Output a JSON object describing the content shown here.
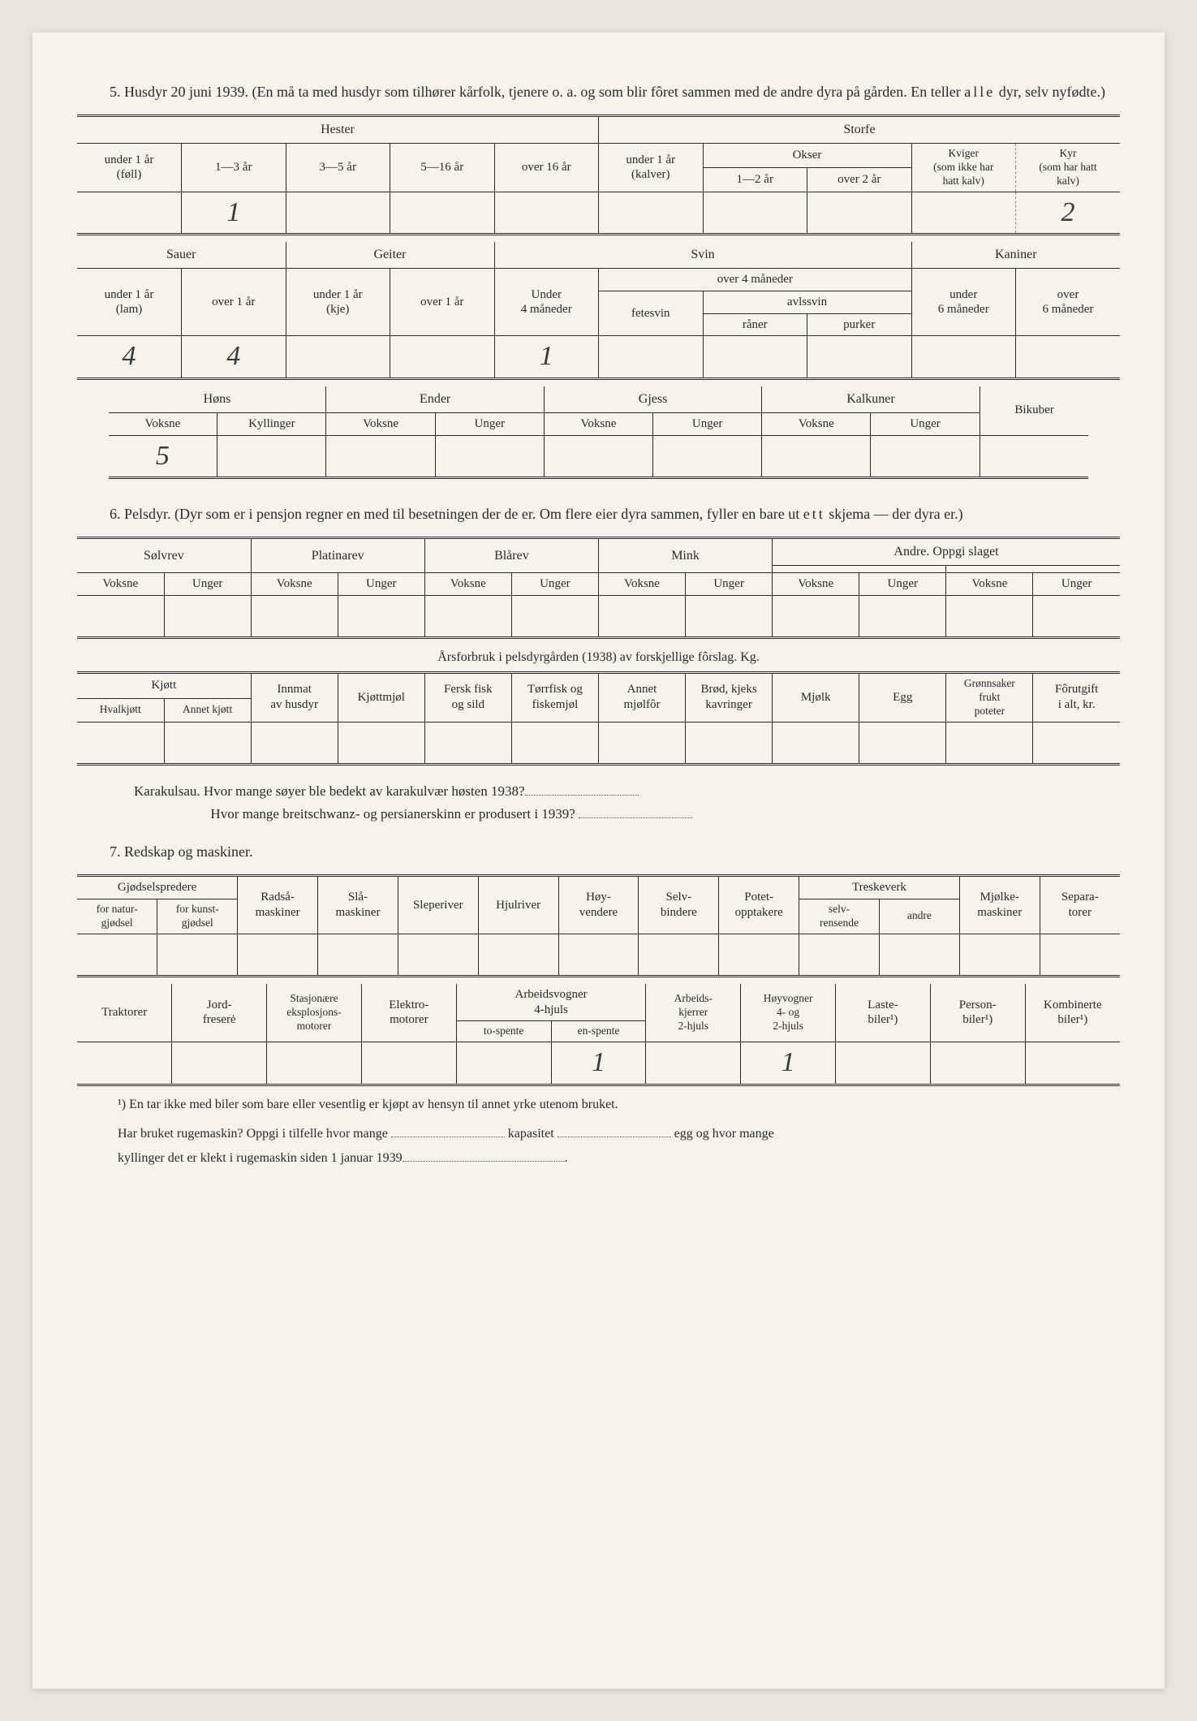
{
  "colors": {
    "page_bg": "#f5f3ea",
    "outer_bg": "#e8e6dc",
    "text": "#2a2a2a",
    "rule": "#2a2a2a",
    "dash": "#888888",
    "handwriting": "#3a3a3a"
  },
  "typography": {
    "body_family": "Georgia, Times New Roman, serif",
    "body_size_pt": 13,
    "header_size_pt": 11,
    "handwriting_family": "Brush Script MT, cursive",
    "handwriting_size_pt": 26
  },
  "section5": {
    "heading": "5.  Husdyr 20 juni 1939.  (En må ta med husdyr som tilhører kårfolk, tjenere o. a. og som blir fôret sammen med de andre dyra på gården.  En teller ",
    "heading_emph": "alle",
    "heading_tail": " dyr, selv nyfødte.)",
    "block1": {
      "groups": {
        "hester": "Hester",
        "storfe": "Storfe"
      },
      "hester_cols": [
        "under 1 år\n(føll)",
        "1—3 år",
        "3—5 år",
        "5—16 år",
        "over 16 år"
      ],
      "storfe": {
        "kalver": "under 1 år\n(kalver)",
        "okser": "Okser",
        "okser_sub": [
          "1—2 år",
          "over 2 år"
        ],
        "kviger": "Kviger\n(som ikke har\nhatt kalv)",
        "kyr": "Kyr\n(som har hatt\nkalv)"
      },
      "values": [
        "",
        "1",
        "",
        "",
        "",
        "",
        "",
        "",
        "",
        "2"
      ]
    },
    "block2": {
      "groups": {
        "sauer": "Sauer",
        "geiter": "Geiter",
        "svin": "Svin",
        "kaniner": "Kaniner"
      },
      "sauer_cols": [
        "under 1 år\n(lam)",
        "over 1 år"
      ],
      "geiter_cols": [
        "under 1 år\n(kje)",
        "over 1 år"
      ],
      "svin": {
        "under4": "Under\n4 måneder",
        "over4": "over 4 måneder",
        "fetesvin": "fetesvin",
        "avlssvin": "avlssvin",
        "avls_sub": [
          "råner",
          "purker"
        ]
      },
      "kaniner_cols": [
        "under\n6 måneder",
        "over\n6 måneder"
      ],
      "values": [
        "4",
        "4",
        "",
        "",
        "1",
        "",
        "",
        "",
        "",
        ""
      ]
    },
    "block3": {
      "groups": {
        "hons": "Høns",
        "ender": "Ender",
        "gjess": "Gjess",
        "kalkuner": "Kalkuner",
        "bikuber": "Bikuber"
      },
      "sub": {
        "voksne": "Voksne",
        "kyllinger": "Kyllinger",
        "unger": "Unger"
      },
      "values": [
        "5",
        "",
        "",
        "",
        "",
        "",
        "",
        "",
        ""
      ]
    }
  },
  "section6": {
    "heading": "6.  Pelsdyr.  (Dyr som er i pensjon regner en med til besetningen der de er.  Om flere eier dyra sammen, fyller en bare ut ",
    "heading_emph": "ett",
    "heading_tail": " skjema — der dyra er.)",
    "block1": {
      "groups": [
        "Sølvrev",
        "Platinarev",
        "Blårev",
        "Mink"
      ],
      "andre": "Andre.  Oppgi slaget",
      "sub": {
        "voksne": "Voksne",
        "unger": "Unger"
      },
      "values": [
        "",
        "",
        "",
        "",
        "",
        "",
        "",
        "",
        "",
        "",
        "",
        ""
      ]
    },
    "feed_caption": "Årsforbruk i pelsdyrgården (1938) av forskjellige fôrslag.  Kg.",
    "feed": {
      "kjott": "Kjøtt",
      "kjott_sub": [
        "Hvalkjøtt",
        "Annet kjøtt"
      ],
      "cols": [
        "Innmat\nav husdyr",
        "Kjøttmjøl",
        "Fersk fisk\nog sild",
        "Tørrfisk og\nfiskemjøl",
        "Annet\nmjølfôr",
        "Brød, kjeks\nkavringer",
        "Mjølk",
        "Egg",
        "Grønnsaker\nfrukt\npoteter",
        "Fôrutgift\ni alt, kr."
      ],
      "values": [
        "",
        "",
        "",
        "",
        "",
        "",
        "",
        "",
        "",
        "",
        "",
        ""
      ]
    },
    "karakul_q1a": "Karakulsau.   Hvor mange søyer ble bedekt av karakulvær høsten 1938?",
    "karakul_q1b": "Hvor mange breitschwanz- og persianerskinn er produsert i 1939?"
  },
  "section7": {
    "heading": "7.  Redskap og maskiner.",
    "block1": {
      "gjodsel": "Gjødselspredere",
      "gjodsel_sub": [
        "for natur-\ngjødsel",
        "for kunst-\ngjødsel"
      ],
      "cols": [
        "Radså-\nmaskiner",
        "Slå-\nmaskiner",
        "Sleperiver",
        "Hjulriver",
        "Høy-\nvendere",
        "Selv-\nbindere",
        "Potet-\nopptakere"
      ],
      "treske": "Treskeverk",
      "treske_sub": [
        "selv-\nrensende",
        "andre"
      ],
      "tail": [
        "Mjølke-\nmaskiner",
        "Separa-\ntorer"
      ],
      "values": [
        "",
        "",
        "",
        "",
        "",
        "",
        "",
        "",
        "",
        "",
        "",
        "",
        ""
      ]
    },
    "block2": {
      "lead": [
        "Traktorer",
        "Jord-\nfreserė",
        "Stasjonære\neksplosjons-\nmotorer",
        "Elektro-\nmotorer"
      ],
      "arbeidsvogner": "Arbeidsvogner\n4-hjuls",
      "arbeidsvogner_sub": [
        "to-spente",
        "en-spente"
      ],
      "tail": [
        "Arbeids-\nkjerrer\n2-hjuls",
        "Høyvogner\n4- og\n2-hjuls",
        "Laste-\nbiler¹)",
        "Person-\nbiler¹)",
        "Kombinerte\nbiler¹)"
      ],
      "values": [
        "",
        "",
        "",
        "",
        "",
        "1",
        "",
        "1",
        "",
        "",
        ""
      ]
    },
    "footnote1": "¹) En tar ikke med biler som bare eller vesentlig er kjøpt av hensyn til annet yrke utenom bruket.",
    "q_ruge_a": "Har bruket rugemaskin?  Oppgi i tilfelle hvor mange ",
    "q_ruge_b": " kapasitet ",
    "q_ruge_c": " egg og hvor mange",
    "q_ruge_d": "kyllinger det er klekt i rugemaskin siden 1 januar 1939",
    "q_ruge_e": "."
  }
}
